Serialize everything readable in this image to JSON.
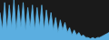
{
  "chart_data": {
    "type": "area",
    "x": [
      0,
      1,
      2,
      3,
      4,
      5,
      6,
      7,
      8,
      9,
      10,
      11,
      12,
      13,
      14,
      15,
      16,
      17,
      18,
      19,
      20,
      21,
      22,
      23,
      24,
      25,
      26,
      27,
      28,
      29,
      30,
      31,
      32,
      33,
      34,
      35,
      36,
      37,
      38,
      39,
      40,
      41,
      42,
      43,
      44,
      45,
      46,
      47
    ],
    "values": [
      22,
      8,
      30,
      8,
      28,
      10,
      32,
      8,
      28,
      10,
      30,
      8,
      26,
      10,
      28,
      8,
      26,
      10,
      28,
      8,
      24,
      10,
      22,
      8,
      18,
      6,
      16,
      8,
      14,
      6,
      10,
      4,
      8,
      4,
      6,
      3,
      4,
      2,
      2,
      1,
      2,
      1,
      2,
      2,
      3,
      4,
      5,
      6
    ],
    "color": "#5baee0",
    "xlim": [
      0,
      47
    ],
    "ylim": [
      0,
      32
    ],
    "tick_labels": false
  }
}
